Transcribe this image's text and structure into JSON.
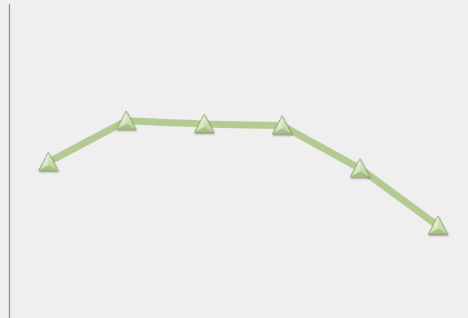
{
  "chart_data": {
    "type": "line",
    "title": "",
    "xlabel": "",
    "ylabel": "",
    "x": [
      1,
      2,
      3,
      4,
      5,
      6
    ],
    "ylim": [
      0,
      100
    ],
    "series": [
      {
        "values": [
          49,
          62,
          61,
          60.5,
          47,
          29
        ],
        "line_color": "#b3cb93",
        "marker": "triangle",
        "marker_fill": "#c6dba8",
        "marker_stroke": "#8aa66a"
      }
    ],
    "grid": false,
    "legend": "none"
  },
  "colors": {
    "background": "#efefef",
    "axis": "#8c8c8c"
  }
}
